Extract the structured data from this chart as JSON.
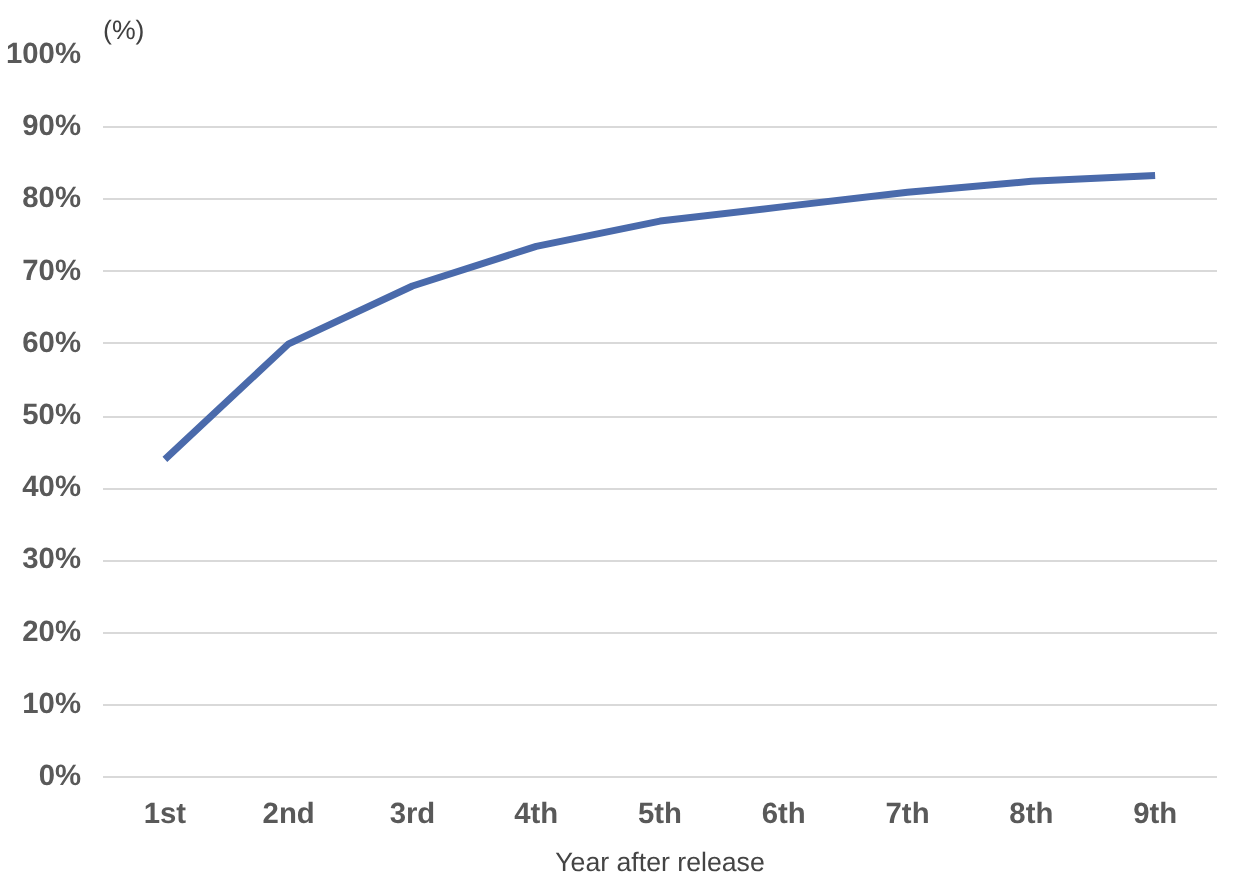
{
  "chart_data": {
    "type": "line",
    "ylabel": "(%)",
    "xlabel": "Year after release",
    "categories": [
      "1st",
      "2nd",
      "3rd",
      "4th",
      "5th",
      "6th",
      "7th",
      "8th",
      "9th"
    ],
    "series": [
      {
        "color": "#4a6aab",
        "values": [
          44,
          60,
          68,
          73.5,
          77,
          79,
          81,
          82.5,
          83.3
        ]
      }
    ],
    "ylim": [
      0,
      100
    ],
    "yticks": [
      {
        "value": 0,
        "label": "0%"
      },
      {
        "value": 10,
        "label": "10%"
      },
      {
        "value": 20,
        "label": "20%"
      },
      {
        "value": 30,
        "label": "30%"
      },
      {
        "value": 40,
        "label": "40%"
      },
      {
        "value": 50,
        "label": "50%"
      },
      {
        "value": 60,
        "label": "60%"
      },
      {
        "value": 70,
        "label": "70%"
      },
      {
        "value": 80,
        "label": "80%"
      },
      {
        "value": 90,
        "label": "90%"
      },
      {
        "value": 100,
        "label": "100%"
      }
    ],
    "grid": "y",
    "marker": "none",
    "line_style": "solid"
  }
}
